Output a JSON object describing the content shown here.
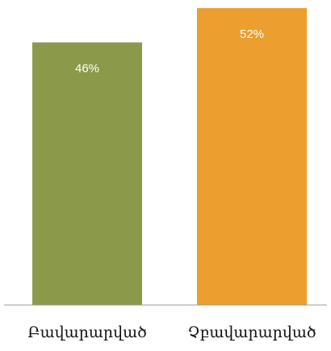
{
  "chart_data": {
    "type": "bar",
    "categories": [
      "Բավարարված",
      "Չբավարարված"
    ],
    "values": [
      46,
      52
    ],
    "value_labels": [
      "46%",
      "52%"
    ],
    "colors": [
      "#8b9a4a",
      "#ec9e2e"
    ],
    "axis_color": "#9a9a9a",
    "title": "",
    "xlabel": "",
    "ylabel": "",
    "ylim": [
      0,
      53
    ],
    "grid": false
  }
}
